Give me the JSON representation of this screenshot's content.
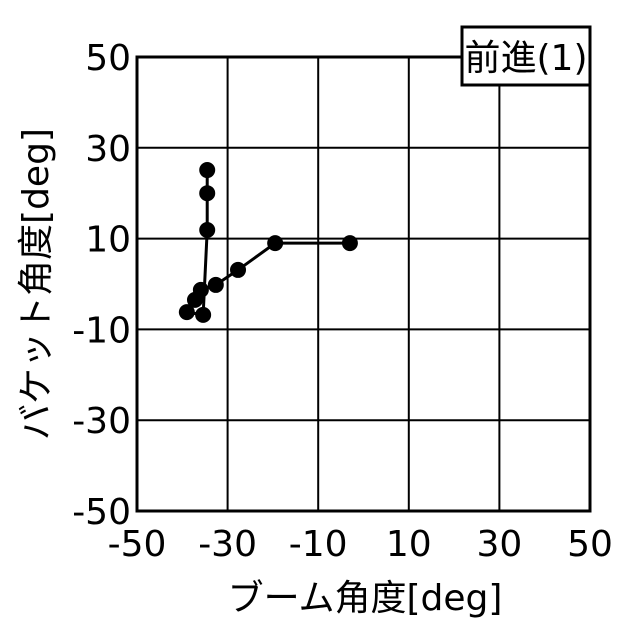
{
  "chart_data": {
    "type": "line",
    "xlabel": "ブーム角度[deg]",
    "ylabel": "バケット角度[deg]",
    "annotation": "前進(1)",
    "x": [
      -34.5,
      -34.5,
      -34.5,
      -35.4,
      -39.0,
      -37.2,
      -35.9,
      -32.6,
      -27.7,
      -19.5,
      -3.0
    ],
    "series": [
      {
        "color": "#000000",
        "values": [
          25.1,
          20.0,
          11.9,
          -6.8,
          -6.2,
          -3.5,
          -1.3,
          -0.2,
          3.1,
          9.0,
          9.0
        ]
      }
    ],
    "xlim": [
      -50,
      50
    ],
    "xticks": [
      -50,
      -30,
      -10,
      10,
      30,
      50
    ],
    "ylim": [
      -50,
      50
    ],
    "yticks": [
      -50,
      -30,
      -10,
      10,
      30,
      50
    ],
    "grid": true,
    "markers": true
  }
}
